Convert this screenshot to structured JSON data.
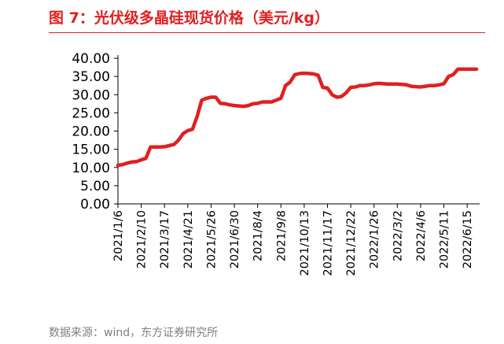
{
  "title": "图 7：光伏级多晶硅现货价格（美元/kg）",
  "source": "数据来源：wind，东方证券研究所",
  "colors": {
    "title": "#e02020",
    "line": "#e02020",
    "source": "#808080"
  },
  "chart_data": {
    "type": "line",
    "title": "图 7：光伏级多晶硅现货价格（美元/kg）",
    "xlabel": "",
    "ylabel": "",
    "ylim": [
      0,
      40
    ],
    "yticks": [
      "0.00",
      "5.00",
      "10.00",
      "15.00",
      "20.00",
      "25.00",
      "30.00",
      "35.00",
      "40.00"
    ],
    "xtick_labels": [
      "2021/1/6",
      "2021/2/10",
      "2021/3/17",
      "2021/4/21",
      "2021/5/26",
      "2021/6/30",
      "2021/8/4",
      "2021/9/8",
      "2021/10/13",
      "2021/11/17",
      "2021/12/22",
      "2022/1/26",
      "2022/3/2",
      "2022/4/6",
      "2022/5/11",
      "2022/6/15"
    ],
    "grid": false,
    "legend": "none",
    "series": [
      {
        "color": "#e02020",
        "x": [
          "2021/1/6",
          "2021/1/13",
          "2021/1/20",
          "2021/1/27",
          "2021/2/3",
          "2021/2/10",
          "2021/2/17",
          "2021/2/24",
          "2021/3/3",
          "2021/3/10",
          "2021/3/17",
          "2021/3/24",
          "2021/3/31",
          "2021/4/7",
          "2021/4/14",
          "2021/4/21",
          "2021/4/28",
          "2021/5/5",
          "2021/5/12",
          "2021/5/19",
          "2021/5/26",
          "2021/6/2",
          "2021/6/9",
          "2021/6/16",
          "2021/6/23",
          "2021/6/30",
          "2021/7/7",
          "2021/7/14",
          "2021/7/21",
          "2021/7/28",
          "2021/8/4",
          "2021/8/11",
          "2021/8/18",
          "2021/8/25",
          "2021/9/1",
          "2021/9/8",
          "2021/9/15",
          "2021/9/22",
          "2021/9/29",
          "2021/10/6",
          "2021/10/13",
          "2021/10/20",
          "2021/10/27",
          "2021/11/3",
          "2021/11/10",
          "2021/11/17",
          "2021/11/24",
          "2021/12/1",
          "2021/12/8",
          "2021/12/15",
          "2021/12/22",
          "2021/12/29",
          "2022/1/5",
          "2022/1/12",
          "2022/1/19",
          "2022/1/26",
          "2022/2/2",
          "2022/2/9",
          "2022/2/16",
          "2022/2/23",
          "2022/3/2",
          "2022/3/9",
          "2022/3/16",
          "2022/3/23",
          "2022/3/30",
          "2022/4/6",
          "2022/4/13",
          "2022/4/20",
          "2022/4/27",
          "2022/5/4",
          "2022/5/11",
          "2022/5/18",
          "2022/5/25",
          "2022/6/1",
          "2022/6/8",
          "2022/6/15",
          "2022/6/22",
          "2022/6/29"
        ],
        "values": [
          10.6,
          10.8,
          11.2,
          11.5,
          11.6,
          12.1,
          12.5,
          15.6,
          15.6,
          15.6,
          15.7,
          16.0,
          16.3,
          17.5,
          19.3,
          20.1,
          20.5,
          24.0,
          28.5,
          29.0,
          29.3,
          29.3,
          27.6,
          27.5,
          27.2,
          27.0,
          26.9,
          26.8,
          27.0,
          27.5,
          27.6,
          28.0,
          28.0,
          28.0,
          28.5,
          29.0,
          32.5,
          33.5,
          35.5,
          35.8,
          35.9,
          35.8,
          35.7,
          35.3,
          32.0,
          31.8,
          30.0,
          29.3,
          29.5,
          30.5,
          32.0,
          32.1,
          32.5,
          32.5,
          32.7,
          33.0,
          33.1,
          33.0,
          32.9,
          32.9,
          32.9,
          32.8,
          32.7,
          32.3,
          32.2,
          32.1,
          32.3,
          32.5,
          32.5,
          32.7,
          33.0,
          35.0,
          35.5,
          37.0,
          37.0,
          37.0,
          37.0,
          37.0
        ]
      }
    ]
  }
}
